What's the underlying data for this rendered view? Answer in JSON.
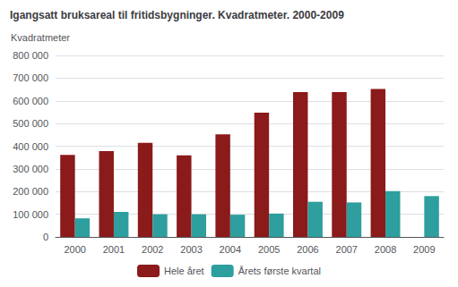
{
  "chart_data": {
    "type": "bar",
    "title": "Igangsatt bruksareal til fritidsbygninger. Kvadratmeter. 2000-2009",
    "y_label": "Kvadratmeter",
    "categories": [
      "2000",
      "2001",
      "2002",
      "2003",
      "2004",
      "2005",
      "2006",
      "2007",
      "2008",
      "2009"
    ],
    "series": [
      {
        "name": "Hele året",
        "color": "#8B1A1A",
        "values": [
          362000,
          378000,
          415000,
          360000,
          452000,
          548000,
          638000,
          638000,
          652000,
          0
        ]
      },
      {
        "name": "Årets første kvartal",
        "color": "#2E9E9E",
        "values": [
          82000,
          110000,
          100000,
          100000,
          98000,
          103000,
          155000,
          152000,
          202000,
          180000
        ]
      }
    ],
    "ylim": [
      0,
      800000
    ],
    "yticks": [
      0,
      {
        "value": 100000,
        "label": "100 000"
      },
      {
        "value": 200000,
        "label": "200 000"
      },
      {
        "value": 300000,
        "label": "300 000"
      },
      {
        "value": 400000,
        "label": "400 000"
      },
      {
        "value": 500000,
        "label": "500 000"
      },
      {
        "value": 600000,
        "label": "600 000"
      },
      {
        "value": 700000,
        "label": "700 000"
      },
      {
        "value": 800000,
        "label": "800 000"
      }
    ],
    "grid": true,
    "legend": "bottom"
  }
}
